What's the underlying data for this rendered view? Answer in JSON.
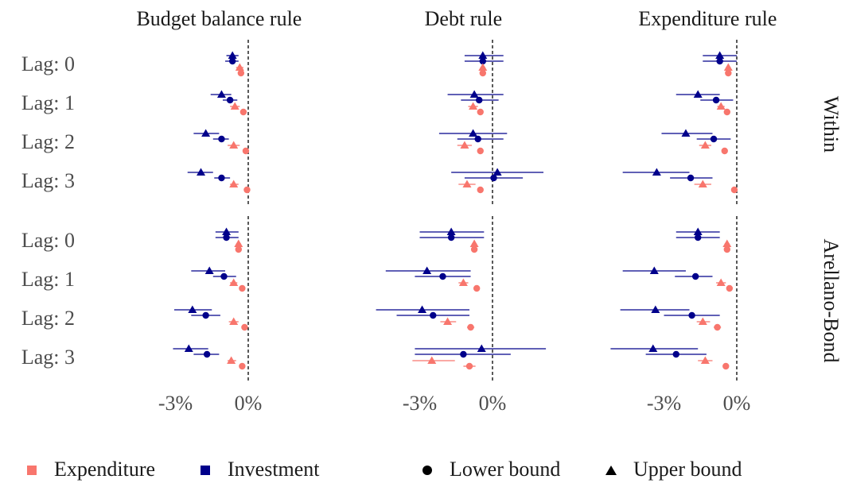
{
  "chart_data": {
    "type": "forest",
    "columns": [
      "Budget balance rule",
      "Debt rule",
      "Expenditure rule"
    ],
    "rows": [
      "Within",
      "Arellano-Bond"
    ],
    "categories": [
      "Lag: 0",
      "Lag: 1",
      "Lag: 2",
      "Lag: 3"
    ],
    "xlim": [
      -5.4,
      2.4
    ],
    "xticks": [
      {
        "value": -3,
        "label": "-3%"
      },
      {
        "value": 0,
        "label": "0%"
      }
    ],
    "vline": 0,
    "color_legend": [
      {
        "name": "Expenditure",
        "color": "#f8766d"
      },
      {
        "name": "Investment",
        "color": "#00008b"
      }
    ],
    "shape_legend": [
      {
        "name": "Lower bound",
        "shape": "circle"
      },
      {
        "name": "Upper bound",
        "shape": "triangle"
      }
    ],
    "series": [
      {
        "color_by": "Investment",
        "shape_by": "Upper bound"
      },
      {
        "color_by": "Investment",
        "shape_by": "Lower bound"
      },
      {
        "color_by": "Expenditure",
        "shape_by": "Upper bound"
      },
      {
        "color_by": "Expenditure",
        "shape_by": "Lower bound"
      }
    ],
    "panels": [
      [
        [
          {
            "values": [
              -0.65,
              -1.1,
              -1.75,
              -1.95
            ],
            "low": [
              -0.9,
              -1.55,
              -2.25,
              -2.5
            ],
            "high": [
              -0.4,
              -0.7,
              -1.2,
              -1.45
            ]
          },
          {
            "values": [
              -0.65,
              -0.75,
              -1.1,
              -1.1
            ],
            "low": [
              -0.95,
              -1.05,
              -1.45,
              -1.4
            ],
            "high": [
              -0.4,
              -0.45,
              -0.8,
              -0.75
            ]
          },
          {
            "values": [
              -0.35,
              -0.55,
              -0.6,
              -0.6
            ],
            "low": [
              -0.5,
              -0.75,
              -0.85,
              -0.75
            ],
            "high": [
              -0.2,
              -0.35,
              -0.35,
              -0.4
            ]
          },
          {
            "values": [
              -0.3,
              -0.2,
              -0.1,
              -0.05
            ],
            "low": [
              -0.35,
              -0.3,
              -0.15,
              -0.1
            ],
            "high": [
              -0.25,
              -0.1,
              -0.05,
              0
            ]
          }
        ],
        [
          {
            "values": [
              -0.4,
              -0.75,
              -0.8,
              0.2
            ],
            "low": [
              -1.15,
              -1.85,
              -2.2,
              -1.7
            ],
            "high": [
              0.45,
              0.45,
              0.6,
              2.1
            ]
          },
          {
            "values": [
              -0.4,
              -0.55,
              -0.6,
              0.05
            ],
            "low": [
              -1.15,
              -1.3,
              -1.45,
              -1.15
            ],
            "high": [
              0.45,
              0.25,
              0.45,
              1.25
            ]
          },
          {
            "values": [
              -0.4,
              -0.8,
              -1.15,
              -1.05
            ],
            "low": [
              -0.5,
              -1.0,
              -1.45,
              -1.4
            ],
            "high": [
              -0.3,
              -0.6,
              -0.85,
              -0.7
            ]
          },
          {
            "values": [
              -0.4,
              -0.5,
              -0.5,
              -0.5
            ],
            "low": [
              -0.45,
              -0.6,
              -0.6,
              -0.6
            ],
            "high": [
              -0.35,
              -0.4,
              -0.4,
              -0.4
            ]
          }
        ],
        [
          {
            "values": [
              -0.7,
              -1.6,
              -2.1,
              -3.3
            ],
            "low": [
              -1.4,
              -2.5,
              -3.1,
              -4.7
            ],
            "high": [
              0,
              -0.7,
              -1.0,
              -1.95
            ]
          },
          {
            "values": [
              -0.7,
              -0.85,
              -0.95,
              -1.9
            ],
            "low": [
              -1.4,
              -1.5,
              -1.65,
              -2.75
            ],
            "high": [
              0,
              -0.15,
              -0.25,
              -1.0
            ]
          },
          {
            "values": [
              -0.35,
              -0.65,
              -1.3,
              -1.4
            ],
            "low": [
              -0.45,
              -0.8,
              -1.55,
              -1.75
            ],
            "high": [
              -0.25,
              -0.5,
              -1.05,
              -1.05
            ]
          },
          {
            "values": [
              -0.35,
              -0.4,
              -0.5,
              -0.1
            ],
            "low": [
              -0.4,
              -0.5,
              -0.6,
              -0.15
            ],
            "high": [
              -0.3,
              -0.3,
              -0.4,
              -0.05
            ]
          }
        ]
      ],
      [
        [
          {
            "values": [
              -0.9,
              -1.6,
              -2.3,
              -2.45
            ],
            "low": [
              -1.35,
              -2.35,
              -3.05,
              -3.1
            ],
            "high": [
              -0.4,
              -0.95,
              -1.5,
              -1.65
            ]
          },
          {
            "values": [
              -0.9,
              -1.0,
              -1.75,
              -1.7
            ],
            "low": [
              -1.35,
              -1.45,
              -2.35,
              -2.25
            ],
            "high": [
              -0.4,
              -0.5,
              -1.15,
              -1.2
            ]
          },
          {
            "values": [
              -0.4,
              -0.6,
              -0.6,
              -0.7
            ],
            "low": [
              -0.5,
              -0.75,
              -0.8,
              -0.85
            ],
            "high": [
              -0.3,
              -0.45,
              -0.4,
              -0.5
            ]
          },
          {
            "values": [
              -0.4,
              -0.25,
              -0.15,
              -0.25
            ],
            "low": [
              -0.45,
              -0.35,
              -0.2,
              -0.35
            ],
            "high": [
              -0.35,
              -0.15,
              -0.1,
              -0.15
            ]
          }
        ],
        [
          {
            "values": [
              -1.7,
              -2.7,
              -2.9,
              -0.45
            ],
            "low": [
              -3.0,
              -4.4,
              -4.8,
              -3.2
            ],
            "high": [
              -0.35,
              -0.9,
              -0.95,
              2.2
            ]
          },
          {
            "values": [
              -1.7,
              -2.05,
              -2.45,
              -1.2
            ],
            "low": [
              -3.0,
              -3.2,
              -3.95,
              -3.2
            ],
            "high": [
              -0.35,
              -0.9,
              -0.95,
              0.75
            ]
          },
          {
            "values": [
              -0.75,
              -1.2,
              -1.85,
              -2.5
            ],
            "low": [
              -0.85,
              -1.4,
              -2.15,
              -3.3
            ],
            "high": [
              -0.65,
              -1.0,
              -1.5,
              -1.55
            ]
          },
          {
            "values": [
              -0.75,
              -0.65,
              -0.9,
              -0.95
            ],
            "low": [
              -0.85,
              -0.75,
              -1.05,
              -1.2
            ],
            "high": [
              -0.65,
              -0.55,
              -0.75,
              -0.7
            ]
          }
        ],
        [
          {
            "values": [
              -1.6,
              -3.4,
              -3.35,
              -3.45
            ],
            "low": [
              -2.5,
              -4.7,
              -4.8,
              -5.2
            ],
            "high": [
              -0.7,
              -2.1,
              -1.95,
              -1.6
            ]
          },
          {
            "values": [
              -1.6,
              -1.7,
              -1.85,
              -2.5
            ],
            "low": [
              -2.5,
              -2.55,
              -3.0,
              -3.75
            ],
            "high": [
              -0.7,
              -1.0,
              -0.7,
              -1.25
            ]
          },
          {
            "values": [
              -0.4,
              -0.65,
              -1.4,
              -1.3
            ],
            "low": [
              -0.5,
              -0.85,
              -1.65,
              -1.6
            ],
            "high": [
              -0.3,
              -0.45,
              -1.1,
              -1.0
            ]
          },
          {
            "values": [
              -0.4,
              -0.3,
              -0.8,
              -0.45
            ],
            "low": [
              -0.5,
              -0.4,
              -0.95,
              -0.55
            ],
            "high": [
              -0.3,
              -0.2,
              -0.65,
              -0.35
            ]
          }
        ]
      ]
    ]
  }
}
